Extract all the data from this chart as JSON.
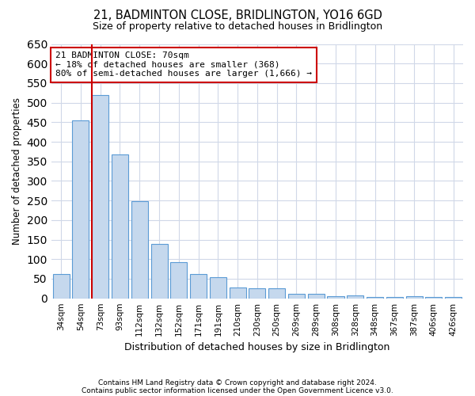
{
  "title": "21, BADMINTON CLOSE, BRIDLINGTON, YO16 6GD",
  "subtitle": "Size of property relative to detached houses in Bridlington",
  "xlabel": "Distribution of detached houses by size in Bridlington",
  "ylabel": "Number of detached properties",
  "categories": [
    "34sqm",
    "54sqm",
    "73sqm",
    "93sqm",
    "112sqm",
    "132sqm",
    "152sqm",
    "171sqm",
    "191sqm",
    "210sqm",
    "230sqm",
    "250sqm",
    "269sqm",
    "289sqm",
    "308sqm",
    "328sqm",
    "348sqm",
    "367sqm",
    "387sqm",
    "406sqm",
    "426sqm"
  ],
  "values": [
    62,
    455,
    520,
    368,
    248,
    140,
    92,
    62,
    55,
    27,
    25,
    25,
    11,
    12,
    6,
    8,
    3,
    4,
    5,
    3,
    3
  ],
  "bar_color": "#c5d8ed",
  "bar_edgecolor": "#5b9bd5",
  "marker_bar_index": 2,
  "marker_line_color": "#cc0000",
  "ylim": [
    0,
    650
  ],
  "annotation_text": "21 BADMINTON CLOSE: 70sqm\n← 18% of detached houses are smaller (368)\n80% of semi-detached houses are larger (1,666) →",
  "annotation_box_color": "#ffffff",
  "annotation_box_edgecolor": "#cc0000",
  "footer1": "Contains HM Land Registry data © Crown copyright and database right 2024.",
  "footer2": "Contains public sector information licensed under the Open Government Licence v3.0.",
  "bg_color": "#ffffff",
  "grid_color": "#d0d8e8"
}
